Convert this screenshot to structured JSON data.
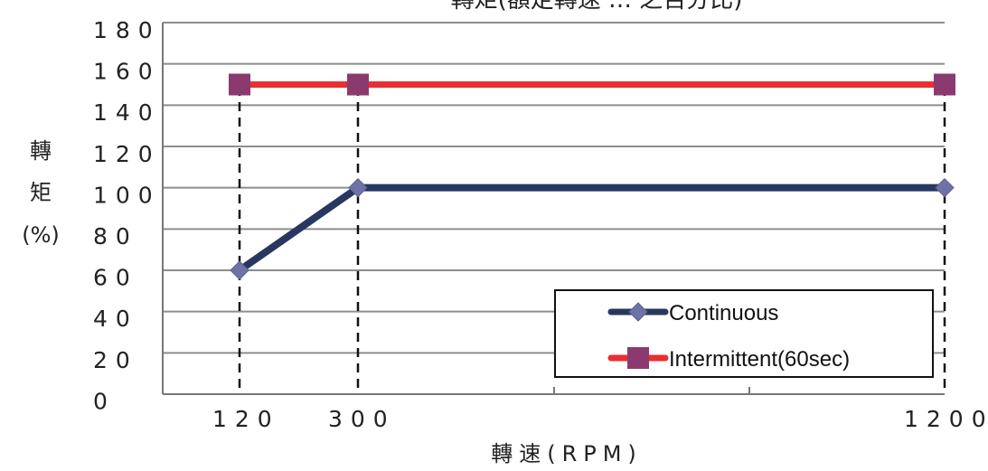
{
  "chart_data": {
    "type": "line",
    "title": "轉矩(額定轉速 … 之百分比)",
    "xlabel": "轉速(RPM)",
    "ylabel": "轉矩(%)",
    "ylabel_lines": [
      "轉",
      "矩",
      "(%)"
    ],
    "x_ticks": [
      "120",
      "300",
      "1200"
    ],
    "y_ticks": [
      "180",
      "160",
      "140",
      "120",
      "100",
      "80",
      "60",
      "40",
      "20",
      "0"
    ],
    "ylim": [
      0,
      180
    ],
    "grid": true,
    "legend_position": "bottom-right",
    "series": [
      {
        "name": "Continuous",
        "x": [
          "120",
          "300",
          "1200"
        ],
        "values": [
          60,
          100,
          100
        ],
        "color": "#27375f",
        "marker": "diamond",
        "marker_color": "#6f72a7"
      },
      {
        "name": "Intermittent(60sec)",
        "x": [
          "120",
          "300",
          "1200"
        ],
        "values": [
          150,
          150,
          150
        ],
        "color": "#ea2f32",
        "marker": "square",
        "marker_color": "#8b3a6f"
      }
    ]
  }
}
